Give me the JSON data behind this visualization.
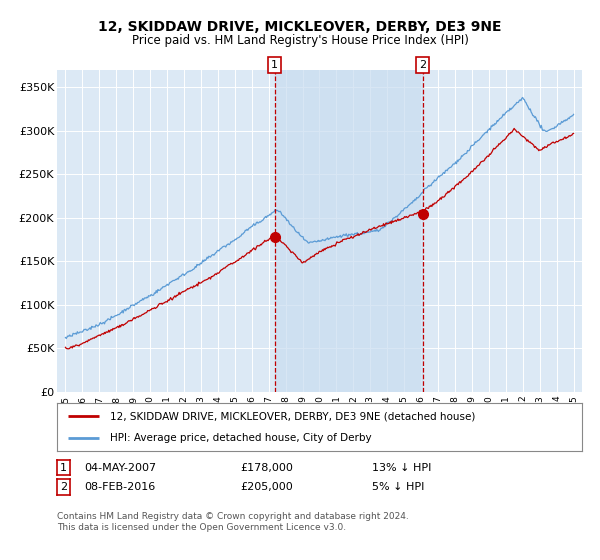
{
  "title": "12, SKIDDAW DRIVE, MICKLEOVER, DERBY, DE3 9NE",
  "subtitle": "Price paid vs. HM Land Registry's House Price Index (HPI)",
  "bg_color": "#dce9f5",
  "ylim": [
    0,
    370000
  ],
  "yticks": [
    0,
    50000,
    100000,
    150000,
    200000,
    250000,
    300000,
    350000
  ],
  "ytick_labels": [
    "£0",
    "£50K",
    "£100K",
    "£150K",
    "£200K",
    "£250K",
    "£300K",
    "£350K"
  ],
  "sale1_x": 2007.35,
  "sale1_price": 178000,
  "sale1_label": "1",
  "sale1_date": "04-MAY-2007",
  "sale1_pct": "13% ↓ HPI",
  "sale1_price_str": "£178,000",
  "sale2_x": 2016.1,
  "sale2_price": 205000,
  "sale2_label": "2",
  "sale2_date": "08-FEB-2016",
  "sale2_pct": "5% ↓ HPI",
  "sale2_price_str": "£205,000",
  "legend_line1": "12, SKIDDAW DRIVE, MICKLEOVER, DERBY, DE3 9NE (detached house)",
  "legend_line2": "HPI: Average price, detached house, City of Derby",
  "footer": "Contains HM Land Registry data © Crown copyright and database right 2024.\nThis data is licensed under the Open Government Licence v3.0.",
  "hpi_color": "#5b9bd5",
  "price_color": "#c00000",
  "shade_color": "#c9ddf0",
  "dashed_color": "#c00000",
  "box_edge_color": "#c00000"
}
